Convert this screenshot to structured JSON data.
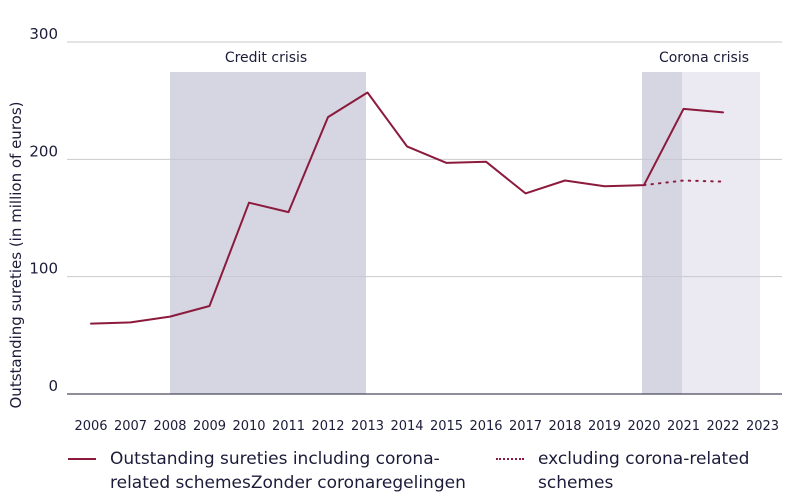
{
  "chart_data": {
    "type": "line",
    "title": "",
    "xlabel": "",
    "ylabel": "Outstanding sureties (in million of euros)",
    "ylim": [
      0,
      300
    ],
    "yticks": [
      "0",
      "100",
      "200",
      "300"
    ],
    "x": [
      "2006",
      "2007",
      "2008",
      "2009",
      "2010",
      "2011",
      "2012",
      "2013",
      "2014",
      "2015",
      "2016",
      "2017",
      "2018",
      "2019",
      "2020",
      "2021",
      "2022",
      "2023"
    ],
    "grid": "horizontal",
    "legend_position": "bottom",
    "series": [
      {
        "name": "Outstanding sureties including corona-related schemesZonder coronaregelingen",
        "style": "solid",
        "color": "#8b1a3c",
        "x": [
          "2006",
          "2007",
          "2008",
          "2009",
          "2010",
          "2011",
          "2012",
          "2013",
          "2014",
          "2015",
          "2016",
          "2017",
          "2018",
          "2019",
          "2020",
          "2021",
          "2022"
        ],
        "values": [
          60,
          61,
          66,
          75,
          163,
          155,
          236,
          257,
          211,
          197,
          198,
          171,
          182,
          177,
          178,
          243,
          240
        ]
      },
      {
        "name": "excluding corona-related schemes",
        "style": "dotted",
        "color": "#8b1a3c",
        "x": [
          "2020",
          "2021",
          "2022"
        ],
        "values": [
          178,
          182,
          181
        ]
      }
    ],
    "shaded_periods": [
      {
        "label": "Credit crisis",
        "from": "2008",
        "to": "2013",
        "color": "#d6d5e2"
      },
      {
        "label": "",
        "from": "2020",
        "to": "2021",
        "color": "#d6d5e2"
      },
      {
        "label": "Corona crisis",
        "from": "2021",
        "to": "2023",
        "color": "#ebeaf2"
      }
    ]
  }
}
